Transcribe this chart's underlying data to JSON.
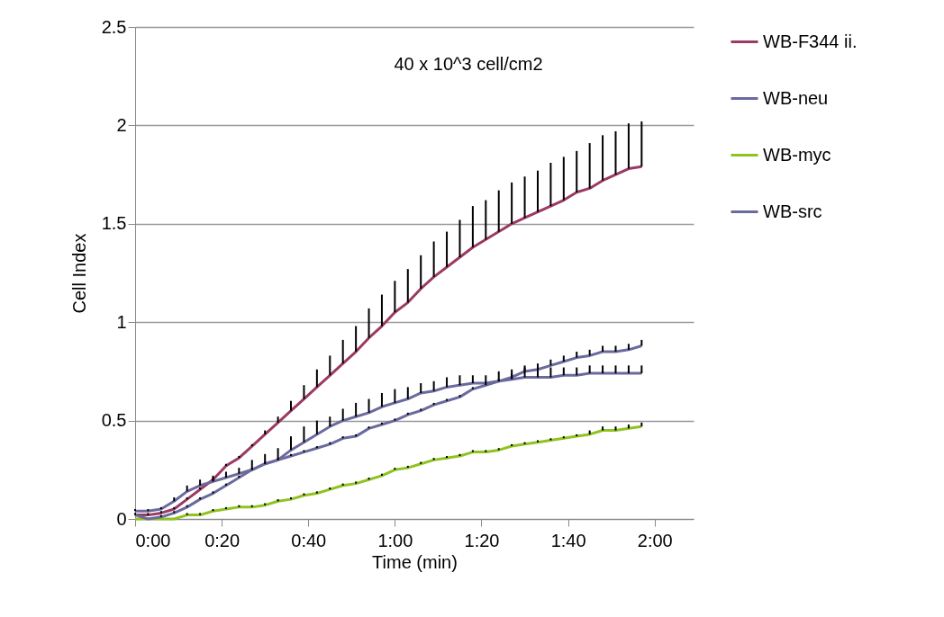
{
  "chart_data": {
    "type": "line",
    "xlabel": "Time (min)",
    "ylabel": "Cell Index",
    "annotations": [
      "40 x 10^3 cell/cm2"
    ],
    "x": [
      0,
      0.05,
      0.1,
      0.15,
      0.2,
      0.25,
      0.3,
      0.35,
      0.4,
      0.45,
      0.5,
      0.55,
      0.6,
      0.65,
      0.7,
      0.75,
      0.8,
      0.85,
      0.9,
      0.95,
      1,
      1.05,
      1.1,
      1.15,
      1.2,
      1.25,
      1.3,
      1.35,
      1.4,
      1.45,
      1.5,
      1.55,
      1.6,
      1.65,
      1.7,
      1.75,
      1.8,
      1.85,
      1.9,
      1.95
    ],
    "series": [
      {
        "name": "WB-F344 ii.",
        "color": "#9b3a63",
        "values": [
          0.02,
          0.02,
          0.03,
          0.05,
          0.1,
          0.15,
          0.2,
          0.27,
          0.31,
          0.37,
          0.43,
          0.49,
          0.55,
          0.61,
          0.67,
          0.73,
          0.79,
          0.85,
          0.92,
          0.98,
          1.05,
          1.1,
          1.17,
          1.23,
          1.28,
          1.33,
          1.38,
          1.42,
          1.46,
          1.5,
          1.53,
          1.56,
          1.59,
          1.62,
          1.66,
          1.68,
          1.72,
          1.75,
          1.78,
          1.79
        ],
        "errors": [
          [
            0.02,
            0.03
          ],
          [
            0.02,
            0.03
          ],
          [
            0.03,
            0.04
          ],
          [
            0.05,
            0.06
          ],
          [
            0.1,
            0.11
          ],
          [
            0.15,
            0.16
          ],
          [
            0.2,
            0.21
          ],
          [
            0.27,
            0.28
          ],
          [
            0.31,
            0.32
          ],
          [
            0.37,
            0.38
          ],
          [
            0.43,
            0.45
          ],
          [
            0.49,
            0.52
          ],
          [
            0.55,
            0.6
          ],
          [
            0.61,
            0.68
          ],
          [
            0.67,
            0.76
          ],
          [
            0.73,
            0.83
          ],
          [
            0.79,
            0.91
          ],
          [
            0.85,
            0.98
          ],
          [
            0.92,
            1.07
          ],
          [
            0.98,
            1.14
          ],
          [
            1.05,
            1.21
          ],
          [
            1.1,
            1.27
          ],
          [
            1.17,
            1.34
          ],
          [
            1.23,
            1.41
          ],
          [
            1.28,
            1.46
          ],
          [
            1.33,
            1.52
          ],
          [
            1.38,
            1.59
          ],
          [
            1.42,
            1.62
          ],
          [
            1.46,
            1.67
          ],
          [
            1.5,
            1.71
          ],
          [
            1.53,
            1.74
          ],
          [
            1.56,
            1.77
          ],
          [
            1.59,
            1.81
          ],
          [
            1.62,
            1.84
          ],
          [
            1.66,
            1.87
          ],
          [
            1.68,
            1.91
          ],
          [
            1.72,
            1.95
          ],
          [
            1.75,
            1.97
          ],
          [
            1.78,
            2.01
          ],
          [
            1.79,
            2.02
          ]
        ]
      },
      {
        "name": "WB-neu",
        "color": "#6a6a9e",
        "values": [
          0.04,
          0.04,
          0.05,
          0.09,
          0.14,
          0.17,
          0.19,
          0.21,
          0.23,
          0.25,
          0.28,
          0.3,
          0.35,
          0.39,
          0.43,
          0.47,
          0.5,
          0.52,
          0.54,
          0.57,
          0.59,
          0.61,
          0.64,
          0.65,
          0.67,
          0.68,
          0.69,
          0.69,
          0.7,
          0.71,
          0.72,
          0.72,
          0.72,
          0.73,
          0.73,
          0.74,
          0.74,
          0.74,
          0.74,
          0.74
        ],
        "errors": [
          [
            0.04,
            0.05
          ],
          [
            0.04,
            0.05
          ],
          [
            0.05,
            0.06
          ],
          [
            0.09,
            0.11
          ],
          [
            0.14,
            0.17
          ],
          [
            0.17,
            0.2
          ],
          [
            0.19,
            0.22
          ],
          [
            0.21,
            0.24
          ],
          [
            0.23,
            0.26
          ],
          [
            0.25,
            0.3
          ],
          [
            0.28,
            0.33
          ],
          [
            0.3,
            0.36
          ],
          [
            0.35,
            0.42
          ],
          [
            0.39,
            0.47
          ],
          [
            0.43,
            0.5
          ],
          [
            0.47,
            0.52
          ],
          [
            0.5,
            0.56
          ],
          [
            0.52,
            0.59
          ],
          [
            0.54,
            0.61
          ],
          [
            0.57,
            0.64
          ],
          [
            0.59,
            0.66
          ],
          [
            0.61,
            0.67
          ],
          [
            0.64,
            0.69
          ],
          [
            0.65,
            0.7
          ],
          [
            0.67,
            0.72
          ],
          [
            0.68,
            0.73
          ],
          [
            0.69,
            0.73
          ],
          [
            0.69,
            0.73
          ],
          [
            0.7,
            0.75
          ],
          [
            0.71,
            0.76
          ],
          [
            0.72,
            0.77
          ],
          [
            0.72,
            0.77
          ],
          [
            0.72,
            0.77
          ],
          [
            0.73,
            0.77
          ],
          [
            0.73,
            0.77
          ],
          [
            0.74,
            0.78
          ],
          [
            0.74,
            0.78
          ],
          [
            0.74,
            0.78
          ],
          [
            0.74,
            0.78
          ],
          [
            0.74,
            0.78
          ]
        ]
      },
      {
        "name": "WB-myc",
        "color": "#8fc31f",
        "values": [
          0.0,
          0.0,
          0.0,
          0.0,
          0.02,
          0.02,
          0.04,
          0.05,
          0.06,
          0.06,
          0.07,
          0.09,
          0.1,
          0.12,
          0.13,
          0.15,
          0.17,
          0.18,
          0.2,
          0.22,
          0.25,
          0.26,
          0.28,
          0.3,
          0.31,
          0.32,
          0.34,
          0.34,
          0.35,
          0.37,
          0.38,
          0.39,
          0.4,
          0.41,
          0.42,
          0.43,
          0.45,
          0.45,
          0.46,
          0.47
        ],
        "errors": [
          null,
          null,
          null,
          null,
          [
            0.02,
            0.03
          ],
          [
            0.02,
            0.03
          ],
          [
            0.04,
            0.05
          ],
          [
            0.05,
            0.06
          ],
          [
            0.06,
            0.07
          ],
          [
            0.06,
            0.07
          ],
          [
            0.07,
            0.08
          ],
          [
            0.09,
            0.1
          ],
          [
            0.1,
            0.11
          ],
          [
            0.12,
            0.13
          ],
          [
            0.13,
            0.14
          ],
          [
            0.15,
            0.16
          ],
          [
            0.17,
            0.18
          ],
          [
            0.18,
            0.19
          ],
          [
            0.2,
            0.21
          ],
          [
            0.22,
            0.23
          ],
          [
            0.25,
            0.26
          ],
          [
            0.26,
            0.27
          ],
          [
            0.28,
            0.29
          ],
          [
            0.3,
            0.31
          ],
          [
            0.31,
            0.32
          ],
          [
            0.32,
            0.33
          ],
          [
            0.34,
            0.35
          ],
          [
            0.34,
            0.35
          ],
          [
            0.35,
            0.36
          ],
          [
            0.37,
            0.38
          ],
          [
            0.38,
            0.39
          ],
          [
            0.39,
            0.4
          ],
          [
            0.4,
            0.41
          ],
          [
            0.41,
            0.42
          ],
          [
            0.42,
            0.43
          ],
          [
            0.43,
            0.45
          ],
          [
            0.45,
            0.47
          ],
          [
            0.45,
            0.47
          ],
          [
            0.46,
            0.48
          ],
          [
            0.47,
            0.49
          ]
        ]
      },
      {
        "name": "WB-src",
        "color": "#6a6a9e",
        "values": [
          0.02,
          0.0,
          0.01,
          0.03,
          0.06,
          0.1,
          0.13,
          0.17,
          0.21,
          0.25,
          0.28,
          0.3,
          0.32,
          0.34,
          0.36,
          0.38,
          0.41,
          0.42,
          0.46,
          0.48,
          0.5,
          0.53,
          0.55,
          0.58,
          0.6,
          0.62,
          0.66,
          0.68,
          0.7,
          0.72,
          0.75,
          0.76,
          0.78,
          0.8,
          0.82,
          0.83,
          0.85,
          0.85,
          0.86,
          0.88
        ],
        "errors": [
          [
            0.02,
            0.03
          ],
          null,
          [
            0.01,
            0.02
          ],
          [
            0.03,
            0.04
          ],
          [
            0.06,
            0.07
          ],
          [
            0.1,
            0.11
          ],
          [
            0.13,
            0.14
          ],
          [
            0.17,
            0.18
          ],
          [
            0.21,
            0.22
          ],
          [
            0.25,
            0.26
          ],
          [
            0.28,
            0.29
          ],
          [
            0.3,
            0.31
          ],
          [
            0.32,
            0.33
          ],
          [
            0.34,
            0.35
          ],
          [
            0.36,
            0.37
          ],
          [
            0.38,
            0.39
          ],
          [
            0.41,
            0.42
          ],
          [
            0.42,
            0.43
          ],
          [
            0.46,
            0.47
          ],
          [
            0.48,
            0.49
          ],
          [
            0.5,
            0.51
          ],
          [
            0.53,
            0.54
          ],
          [
            0.55,
            0.56
          ],
          [
            0.58,
            0.59
          ],
          [
            0.6,
            0.61
          ],
          [
            0.62,
            0.63
          ],
          [
            0.66,
            0.67
          ],
          [
            0.68,
            0.69
          ],
          [
            0.7,
            0.71
          ],
          [
            0.72,
            0.74
          ],
          [
            0.75,
            0.78
          ],
          [
            0.76,
            0.79
          ],
          [
            0.78,
            0.81
          ],
          [
            0.8,
            0.83
          ],
          [
            0.82,
            0.85
          ],
          [
            0.83,
            0.86
          ],
          [
            0.85,
            0.88
          ],
          [
            0.85,
            0.88
          ],
          [
            0.86,
            0.89
          ],
          [
            0.88,
            0.91
          ]
        ]
      }
    ],
    "xlim": [
      0,
      2.15
    ],
    "xticks": [
      {
        "value": 0,
        "label": "0:00"
      },
      {
        "value": 0.3333,
        "label": "0:20"
      },
      {
        "value": 0.6667,
        "label": "0:40"
      },
      {
        "value": 1,
        "label": "1:00"
      },
      {
        "value": 1.3333,
        "label": "1:20"
      },
      {
        "value": 1.6667,
        "label": "1:40"
      },
      {
        "value": 2,
        "label": "2:00"
      }
    ],
    "ylim": [
      0,
      2.5
    ],
    "yticks": [
      0,
      0.5,
      1,
      1.5,
      2,
      2.5
    ],
    "grid": "y",
    "legend": "right",
    "marker": "none",
    "line_style": "solid"
  }
}
